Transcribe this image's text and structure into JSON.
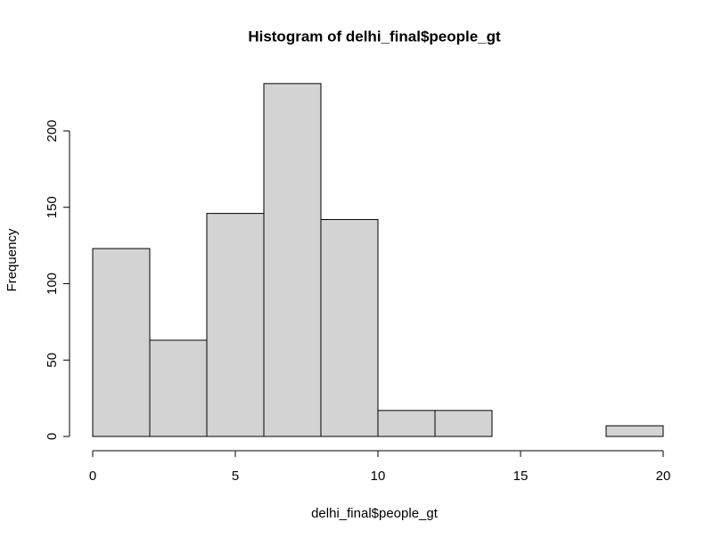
{
  "chart_data": {
    "type": "histogram",
    "title": "Histogram of delhi_final$people_gt",
    "x_label": "delhi_final$people_gt",
    "y_label": "Frequency",
    "bins": [
      0,
      2,
      4,
      6,
      8,
      10,
      12,
      14,
      16,
      18,
      20
    ],
    "counts": [
      123,
      63,
      146,
      231,
      142,
      17,
      17,
      0,
      0,
      7
    ],
    "color": "#d3d3d3",
    "edge_color": "#000000",
    "xlim": [
      0,
      20
    ],
    "ylim": [
      0,
      231
    ],
    "xticks": [
      0,
      5,
      10,
      15,
      20
    ],
    "yticks": [
      0,
      50,
      100,
      150,
      200
    ]
  }
}
